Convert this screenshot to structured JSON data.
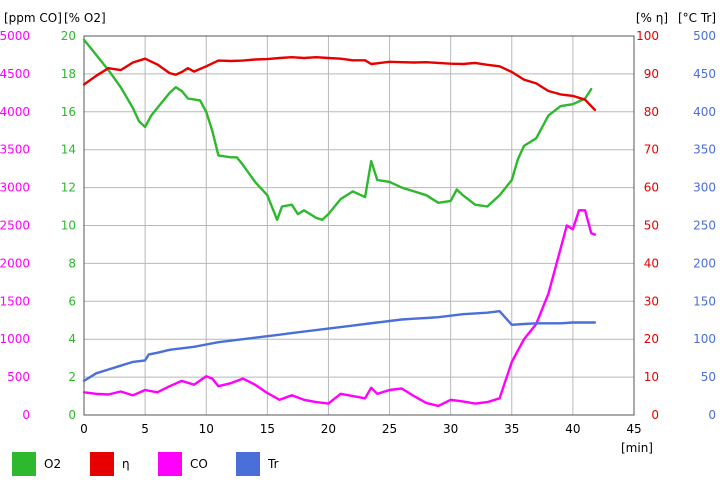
{
  "chart_data": {
    "type": "line",
    "title": "",
    "x": {
      "label": "[min]",
      "range": [
        0,
        45
      ],
      "ticks": [
        0,
        5,
        10,
        15,
        20,
        25,
        30,
        35,
        40,
        45
      ]
    },
    "axes": [
      {
        "id": "co",
        "label": "[ppm CO]",
        "color": "#ff00ff",
        "range": [
          0,
          5000
        ],
        "ticks": [
          0,
          500,
          1000,
          1500,
          2000,
          2500,
          3000,
          3500,
          4000,
          4500,
          5000
        ]
      },
      {
        "id": "o2",
        "label": "[% O2]",
        "color": "#2db82d",
        "range": [
          0,
          20
        ],
        "ticks": [
          0,
          2,
          4,
          6,
          8,
          10,
          12,
          14,
          16,
          18,
          20
        ]
      },
      {
        "id": "eta",
        "label": "[% η]",
        "color": "#e60000",
        "range": [
          0,
          100
        ],
        "ticks": [
          0,
          10,
          20,
          30,
          40,
          50,
          60,
          70,
          80,
          90,
          100
        ]
      },
      {
        "id": "tr",
        "label": "[°C Tr]",
        "color": "#4a6fd8",
        "range": [
          0,
          500
        ],
        "ticks": [
          0,
          50,
          100,
          150,
          200,
          250,
          300,
          350,
          400,
          450,
          500
        ]
      }
    ],
    "grid": true,
    "legend_position": "bottom",
    "series": [
      {
        "name": "O2",
        "axis": "o2",
        "color": "#2db82d",
        "points": [
          [
            0,
            19.8
          ],
          [
            1,
            19
          ],
          [
            2,
            18.2
          ],
          [
            3,
            17.3
          ],
          [
            4,
            16.2
          ],
          [
            4.5,
            15.5
          ],
          [
            5,
            15.2
          ],
          [
            5.5,
            15.8
          ],
          [
            6,
            16.2
          ],
          [
            7,
            17
          ],
          [
            7.5,
            17.3
          ],
          [
            8,
            17.1
          ],
          [
            8.5,
            16.7
          ],
          [
            9.5,
            16.6
          ],
          [
            10,
            16
          ],
          [
            10.5,
            15
          ],
          [
            11,
            13.7
          ],
          [
            12,
            13.6
          ],
          [
            12.5,
            13.6
          ],
          [
            13,
            13.2
          ],
          [
            14,
            12.3
          ],
          [
            15,
            11.6
          ],
          [
            15.8,
            10.3
          ],
          [
            16.2,
            11
          ],
          [
            17,
            11.1
          ],
          [
            17.5,
            10.6
          ],
          [
            18,
            10.8
          ],
          [
            19,
            10.4
          ],
          [
            19.5,
            10.3
          ],
          [
            20,
            10.6
          ],
          [
            21,
            11.4
          ],
          [
            22,
            11.8
          ],
          [
            23,
            11.5
          ],
          [
            23.5,
            13.4
          ],
          [
            24,
            12.4
          ],
          [
            25,
            12.3
          ],
          [
            26,
            12
          ],
          [
            27,
            11.8
          ],
          [
            28,
            11.6
          ],
          [
            29,
            11.2
          ],
          [
            30,
            11.3
          ],
          [
            30.5,
            11.9
          ],
          [
            31,
            11.6
          ],
          [
            32,
            11.1
          ],
          [
            33,
            11
          ],
          [
            33.5,
            11.3
          ],
          [
            34,
            11.6
          ],
          [
            35,
            12.4
          ],
          [
            35.5,
            13.5
          ],
          [
            36,
            14.2
          ],
          [
            37,
            14.6
          ],
          [
            38,
            15.8
          ],
          [
            39,
            16.3
          ],
          [
            40,
            16.4
          ],
          [
            41,
            16.7
          ],
          [
            41.5,
            17.2
          ]
        ]
      },
      {
        "name": "η",
        "axis": "eta",
        "color": "#e60000",
        "points": [
          [
            0,
            87.2
          ],
          [
            1,
            89.5
          ],
          [
            2,
            91.5
          ],
          [
            3,
            91
          ],
          [
            4,
            93
          ],
          [
            5,
            94
          ],
          [
            6,
            92.5
          ],
          [
            7,
            90.2
          ],
          [
            7.5,
            89.8
          ],
          [
            8,
            90.5
          ],
          [
            8.5,
            91.5
          ],
          [
            9,
            90.6
          ],
          [
            10,
            92
          ],
          [
            11,
            93.5
          ],
          [
            12,
            93.4
          ],
          [
            13,
            93.5
          ],
          [
            14,
            93.8
          ],
          [
            15,
            93.9
          ],
          [
            16,
            94.2
          ],
          [
            17,
            94.4
          ],
          [
            18,
            94.2
          ],
          [
            19,
            94.4
          ],
          [
            20,
            94.2
          ],
          [
            21,
            94
          ],
          [
            22,
            93.6
          ],
          [
            23,
            93.6
          ],
          [
            23.5,
            92.6
          ],
          [
            24,
            92.8
          ],
          [
            25,
            93.2
          ],
          [
            26,
            93.1
          ],
          [
            27,
            93
          ],
          [
            28,
            93.1
          ],
          [
            29,
            92.9
          ],
          [
            30,
            92.7
          ],
          [
            31,
            92.6
          ],
          [
            32,
            92.9
          ],
          [
            33,
            92.4
          ],
          [
            34,
            92
          ],
          [
            35,
            90.5
          ],
          [
            36,
            88.5
          ],
          [
            37,
            87.5
          ],
          [
            38,
            85.5
          ],
          [
            39,
            84.6
          ],
          [
            40,
            84.2
          ],
          [
            41,
            83.2
          ],
          [
            41.8,
            80.5
          ]
        ]
      },
      {
        "name": "CO",
        "axis": "co",
        "color": "#ff00ff",
        "points": [
          [
            0,
            300
          ],
          [
            1,
            280
          ],
          [
            2,
            270
          ],
          [
            3,
            310
          ],
          [
            4,
            260
          ],
          [
            5,
            330
          ],
          [
            6,
            300
          ],
          [
            7,
            380
          ],
          [
            8,
            450
          ],
          [
            9,
            400
          ],
          [
            10,
            510
          ],
          [
            10.5,
            480
          ],
          [
            11,
            380
          ],
          [
            12,
            420
          ],
          [
            13,
            480
          ],
          [
            14,
            400
          ],
          [
            15,
            290
          ],
          [
            16,
            200
          ],
          [
            17,
            260
          ],
          [
            18,
            200
          ],
          [
            19,
            170
          ],
          [
            20,
            150
          ],
          [
            21,
            280
          ],
          [
            22,
            250
          ],
          [
            23,
            220
          ],
          [
            23.5,
            360
          ],
          [
            24,
            280
          ],
          [
            25,
            330
          ],
          [
            26,
            350
          ],
          [
            27,
            250
          ],
          [
            28,
            160
          ],
          [
            29,
            120
          ],
          [
            30,
            200
          ],
          [
            31,
            180
          ],
          [
            32,
            150
          ],
          [
            33,
            170
          ],
          [
            34,
            220
          ],
          [
            35,
            700
          ],
          [
            36,
            1000
          ],
          [
            37,
            1200
          ],
          [
            38,
            1600
          ],
          [
            39,
            2200
          ],
          [
            39.5,
            2500
          ],
          [
            40,
            2450
          ],
          [
            40.5,
            2700
          ],
          [
            41,
            2700
          ],
          [
            41.5,
            2400
          ],
          [
            41.8,
            2380
          ]
        ]
      },
      {
        "name": "Tr",
        "axis": "tr",
        "color": "#4a6fd8",
        "points": [
          [
            0,
            45
          ],
          [
            1,
            55
          ],
          [
            2,
            60
          ],
          [
            3,
            65
          ],
          [
            4,
            70
          ],
          [
            5,
            72
          ],
          [
            5.3,
            80
          ],
          [
            6,
            82
          ],
          [
            7,
            86
          ],
          [
            8,
            88
          ],
          [
            9,
            90
          ],
          [
            10,
            93
          ],
          [
            11,
            96
          ],
          [
            12,
            98
          ],
          [
            13,
            100
          ],
          [
            14,
            102
          ],
          [
            15,
            104
          ],
          [
            16,
            106
          ],
          [
            17,
            108
          ],
          [
            18,
            110
          ],
          [
            19,
            112
          ],
          [
            20,
            114
          ],
          [
            21,
            116
          ],
          [
            22,
            118
          ],
          [
            23,
            120
          ],
          [
            24,
            122
          ],
          [
            25,
            124
          ],
          [
            26,
            126
          ],
          [
            27,
            127
          ],
          [
            28,
            128
          ],
          [
            29,
            129
          ],
          [
            30,
            131
          ],
          [
            31,
            133
          ],
          [
            32,
            134
          ],
          [
            33,
            135
          ],
          [
            34,
            137
          ],
          [
            35,
            119
          ],
          [
            36,
            120
          ],
          [
            37,
            121
          ],
          [
            38,
            121
          ],
          [
            39,
            121
          ],
          [
            40,
            122
          ],
          [
            41,
            122
          ],
          [
            41.8,
            122
          ]
        ]
      }
    ]
  }
}
